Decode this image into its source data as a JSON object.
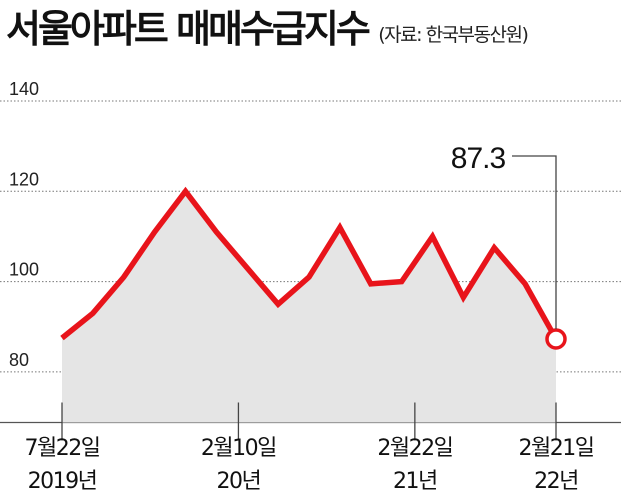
{
  "header": {
    "title": "서울아파트 매매수급지수",
    "source": "(자료: 한국부동산원)"
  },
  "chart_data": {
    "type": "area",
    "title": "서울아파트 매매수급지수",
    "source": "(자료: 한국부동산원)",
    "y_ticks": [
      140,
      120,
      100,
      80
    ],
    "ylim": [
      75,
      140
    ],
    "grid": true,
    "x_tick_labels": [
      {
        "line1": "7월22일",
        "line2": "2019년",
        "index": 0
      },
      {
        "line1": "2월10일",
        "line2": "20년",
        "index": 5
      },
      {
        "line1": "2월22일",
        "line2": "21년",
        "index": 10
      },
      {
        "line1": "2월21일",
        "line2": "22년",
        "index": 14
      }
    ],
    "values": [
      87.5,
      93,
      101,
      111,
      120,
      111,
      103,
      95,
      101,
      112,
      99.5,
      100,
      110,
      96.5,
      107.5,
      99.5,
      87.3
    ],
    "last_value_label": "87.3",
    "colors": {
      "line": "#e8141b",
      "fill": "#e5e5e5",
      "grid": "#777777",
      "marker_fill": "#ffffff"
    }
  }
}
